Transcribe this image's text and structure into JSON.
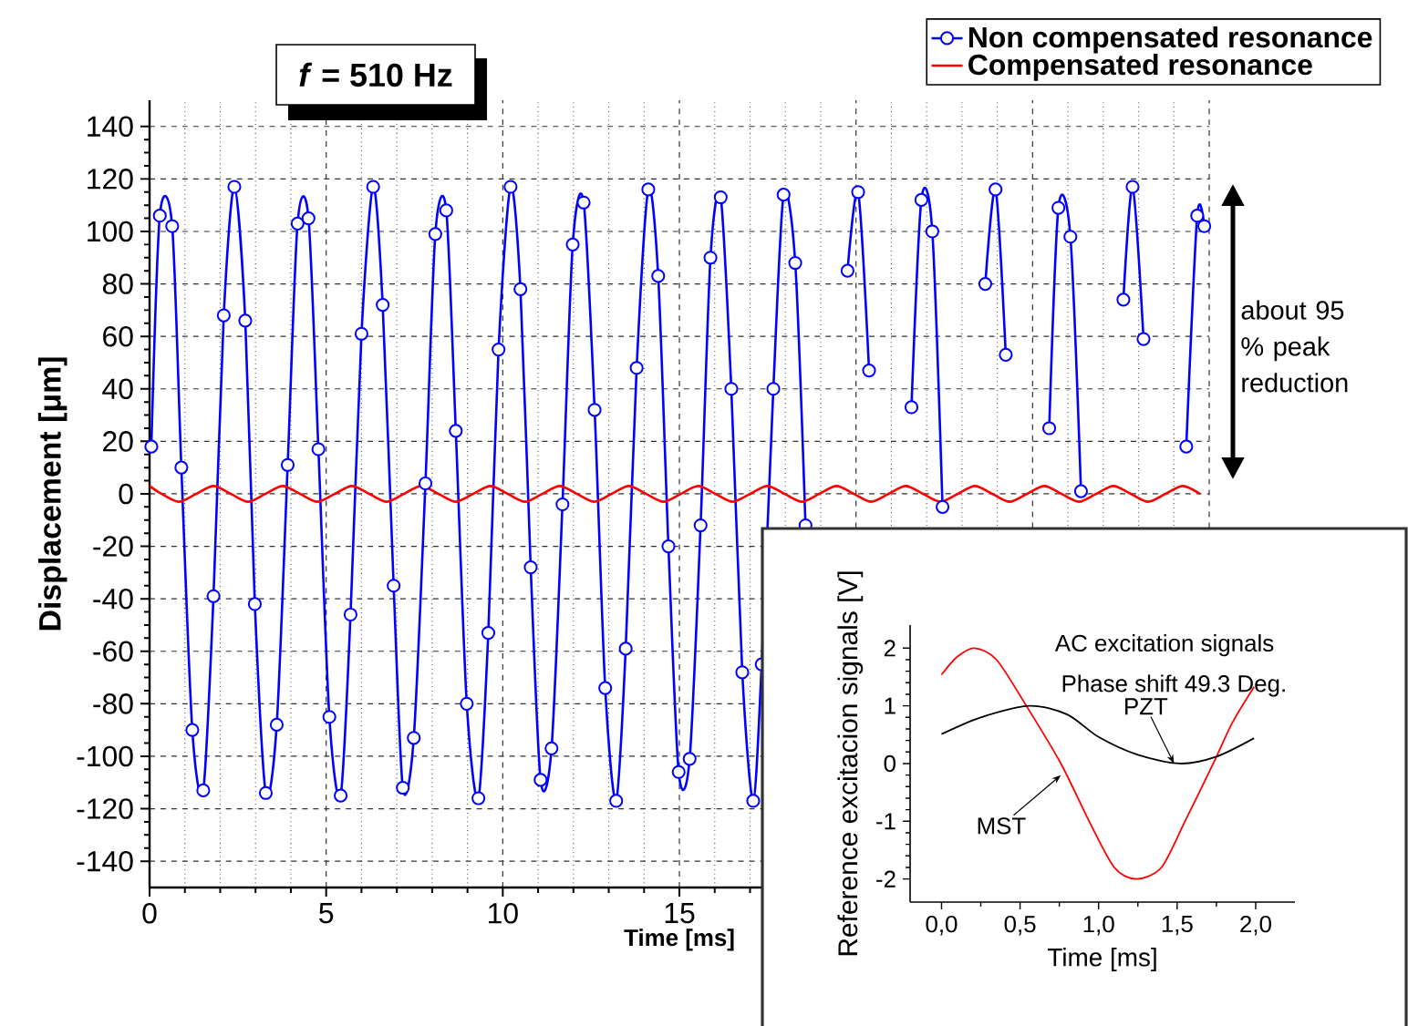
{
  "chart_data": [
    {
      "type": "line",
      "annotations": [
        "*f* = 510 Hz",
        "about 95 % peak reduction"
      ],
      "xlabel": "Time [ms]",
      "ylabel": "Displacement [μm]",
      "xlim": [
        0,
        30
      ],
      "xticks": [
        0,
        5,
        10,
        15,
        {
          "value": 20,
          "label": null
        },
        {
          "value": 25,
          "label": null
        },
        {
          "value": 30,
          "label": null
        }
      ],
      "ylim": [
        -150,
        150
      ],
      "yticks": [
        -140,
        -120,
        -100,
        -80,
        -60,
        -40,
        -20,
        0,
        20,
        40,
        60,
        80,
        100,
        120,
        140
      ],
      "grid": true,
      "legend": "top right",
      "series": [
        {
          "name": "Non compensated resonance",
          "color": "#0000ff",
          "marker": "circle",
          "x": [
            0.05,
            0.29,
            0.64,
            0.9,
            1.21,
            1.52,
            1.81,
            2.1,
            2.4,
            2.71,
            2.98,
            3.29,
            3.6,
            3.91,
            4.19,
            4.5,
            4.78,
            5.09,
            5.41,
            5.69,
            6.0,
            6.33,
            6.6,
            6.91,
            7.17,
            7.48,
            7.81,
            8.09,
            8.4,
            8.67,
            8.98,
            9.31,
            9.59,
            9.88,
            10.22,
            10.5,
            10.79,
            11.07,
            11.38,
            11.69,
            11.98,
            12.29,
            12.6,
            12.9,
            13.21,
            13.48,
            13.79,
            14.12,
            14.4,
            14.69,
            14.98,
            15.29,
            15.6,
            15.88,
            16.17,
            16.47,
            16.78,
            17.09,
            17.33,
            17.66,
            17.95,
            18.28,
            18.57,
            18.87,
            19.17,
            19.47,
            19.76,
            20.06,
            20.37,
            20.67,
            20.97,
            21.27,
            21.57,
            21.85,
            22.16,
            22.45,
            22.75,
            23.05,
            23.35,
            23.66,
            23.95,
            24.24,
            24.55,
            24.86,
            25.16,
            25.47,
            25.73,
            26.07,
            26.37,
            26.67,
            26.97,
            27.27,
            27.57,
            27.83,
            28.14,
            28.45,
            28.75,
            29.05,
            29.35,
            29.66,
            29.86
          ],
          "values": [
            18,
            106,
            102,
            10,
            -90,
            -113,
            -39,
            68,
            117,
            66,
            -42,
            -114,
            -88,
            11,
            103,
            105,
            17,
            -85,
            -115,
            -46,
            61,
            117,
            72,
            -35,
            -112,
            -93,
            4,
            99,
            108,
            24,
            -80,
            -116,
            -53,
            55,
            117,
            78,
            -28,
            -109,
            -97,
            -4,
            95,
            111,
            32,
            -74,
            -117,
            -59,
            48,
            116,
            83,
            -20,
            -106,
            -101,
            -12,
            90,
            113,
            40,
            -68,
            -117,
            -65,
            40,
            114,
            88,
            -12,
            null,
            null,
            null,
            85,
            115,
            47,
            null,
            null,
            null,
            33,
            112,
            100,
            -5,
            null,
            null,
            null,
            80,
            116,
            53,
            null,
            null,
            null,
            25,
            109,
            98,
            1,
            null,
            null,
            null,
            74,
            117,
            59,
            null,
            null,
            null,
            18,
            106,
            102
          ]
        },
        {
          "name": "Compensated resonance",
          "color": "#ff0000",
          "marker": "none",
          "x": [
            0,
            0.34,
            0.83,
            1.32,
            1.81,
            2.3,
            2.79,
            3.28,
            3.77,
            4.26,
            4.75,
            5.24,
            5.73,
            6.22,
            6.71,
            7.2,
            7.69,
            8.18,
            8.67,
            9.16,
            9.65,
            10.14,
            10.63,
            11.12,
            11.61,
            12.1,
            12.59,
            13.08,
            13.57,
            14.06,
            14.55,
            15.04,
            15.53,
            16.02,
            16.51,
            17.0,
            17.49,
            17.98,
            18.47,
            18.96,
            19.45,
            19.94,
            20.43,
            20.92,
            21.41,
            21.9,
            22.39,
            22.88,
            23.37,
            23.86,
            24.35,
            24.84,
            25.33,
            25.82,
            26.31,
            26.8,
            27.29,
            27.78,
            28.27,
            28.76,
            29.25,
            29.74
          ],
          "values": [
            3,
            0,
            -3,
            0,
            3,
            0,
            -3,
            0,
            3,
            0,
            -3,
            0,
            3,
            0,
            -3,
            0,
            3,
            0,
            -3,
            0,
            3,
            0,
            -3,
            0,
            3,
            0,
            -3,
            0,
            3,
            0,
            -3,
            0,
            3,
            0,
            -3,
            0,
            3,
            0,
            -3,
            0,
            3,
            0,
            -3,
            0,
            3,
            0,
            -3,
            0,
            3,
            0,
            -3,
            0,
            3,
            0,
            -3,
            0,
            3,
            0,
            -3,
            0,
            3,
            0
          ]
        }
      ]
    },
    {
      "type": "line",
      "annotations": [
        "AC excitation signals",
        "Phase shift 49.3 Deg.",
        {
          "text": "PZT",
          "x": 1.48,
          "y": 0
        },
        {
          "text": "MST",
          "x": 0.76,
          "y": -0.2
        }
      ],
      "xlabel": "Time [ms]",
      "ylabel": "Reference excitacion signals [V]",
      "xlim": [
        -0.2,
        2.25
      ],
      "xticks": [
        {
          "value": 0,
          "label": "0,0"
        },
        {
          "value": 0.5,
          "label": "0,5"
        },
        {
          "value": 1,
          "label": "1,0"
        },
        {
          "value": 1.5,
          "label": "1,5"
        },
        {
          "value": 2,
          "label": "2,0"
        }
      ],
      "ylim": [
        -2.4,
        2.4
      ],
      "yticks": [
        -2,
        -1,
        0,
        1,
        2
      ],
      "series": [
        {
          "color": "#ff0000",
          "x": [
            0,
            0.1,
            0.21,
            0.35,
            0.54,
            0.76,
            0.94,
            1.1,
            1.24,
            1.4,
            1.55,
            1.73,
            1.85,
            1.99
          ],
          "values": [
            1.54,
            1.85,
            2.0,
            1.8,
            1.0,
            0,
            -1,
            -1.8,
            -2,
            -1.8,
            -1,
            0,
            0.7,
            1.33
          ]
        },
        {
          "color": "#000000",
          "x": [
            0,
            0.25,
            0.56,
            0.8,
            1.0,
            1.25,
            1.52,
            1.75,
            1.99
          ],
          "values": [
            0.51,
            0.8,
            1.0,
            0.85,
            0.46,
            0.15,
            0,
            0.12,
            0.44
          ]
        }
      ]
    }
  ]
}
